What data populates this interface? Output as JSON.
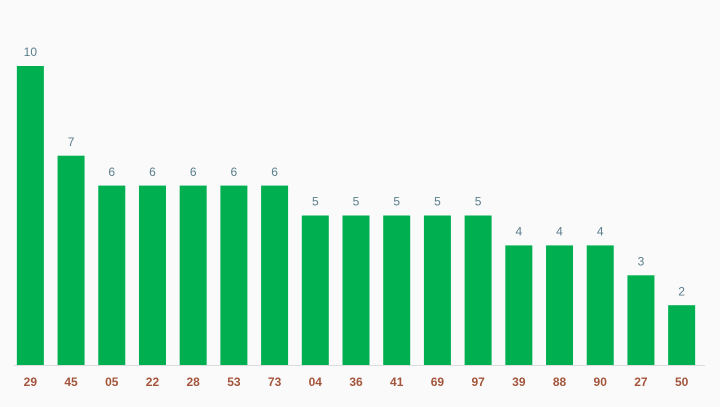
{
  "chart_data": {
    "type": "bar",
    "categories": [
      "29",
      "45",
      "05",
      "22",
      "28",
      "53",
      "73",
      "04",
      "36",
      "41",
      "69",
      "97",
      "39",
      "88",
      "90",
      "27",
      "50"
    ],
    "values": [
      10,
      7,
      6,
      6,
      6,
      6,
      6,
      5,
      5,
      5,
      5,
      5,
      4,
      4,
      4,
      3,
      2
    ],
    "color": "#00b050"
  }
}
